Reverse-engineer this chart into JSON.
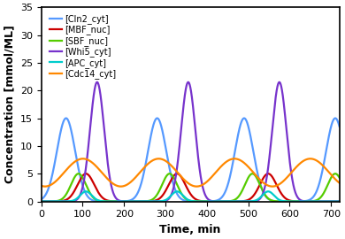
{
  "xlabel": "Time, min",
  "ylabel": "Concentration [mmol/ML]",
  "xlim": [
    0,
    720
  ],
  "ylim": [
    0,
    35
  ],
  "xticks": [
    0,
    100,
    200,
    300,
    400,
    500,
    600,
    700
  ],
  "yticks": [
    0,
    5,
    10,
    15,
    20,
    25,
    30,
    35
  ],
  "legend": [
    "[Cln2_cyt]",
    "[MBF_nuc]",
    "[SBF_nuc]",
    "[Whi5_cyt]",
    "[APC_cyt]",
    "[Cdc14_cyt]"
  ],
  "colors": [
    "#5599ff",
    "#cc0000",
    "#55cc00",
    "#7733cc",
    "#00cccc",
    "#ff8800"
  ],
  "legend_fontsize": 7.0,
  "axis_fontsize": 9,
  "tick_fontsize": 8,
  "linewidth": 1.6,
  "cln2_peaks": [
    60,
    280,
    490,
    710
  ],
  "cln2_amp": 15.0,
  "cln2_sigma": 22,
  "whi5_peaks": [
    135,
    355,
    575
  ],
  "whi5_amp": 21.5,
  "whi5_sigma": 17,
  "mbf_peaks": [
    108,
    328,
    548
  ],
  "mbf_amp": 5.0,
  "mbf_sigma": 20,
  "mbf_base": 0.0,
  "sbf_peaks": [
    90,
    310,
    510,
    710
  ],
  "sbf_amp": 5.0,
  "sbf_sigma": 18,
  "apc_peaks": [
    108,
    328,
    548
  ],
  "apc_amp": 1.8,
  "apc_sigma": 14,
  "apc_base": 0.0,
  "cdc14_base": 5.2,
  "cdc14_amp": 2.5,
  "cdc14_period": 183,
  "cdc14_phase": 55
}
